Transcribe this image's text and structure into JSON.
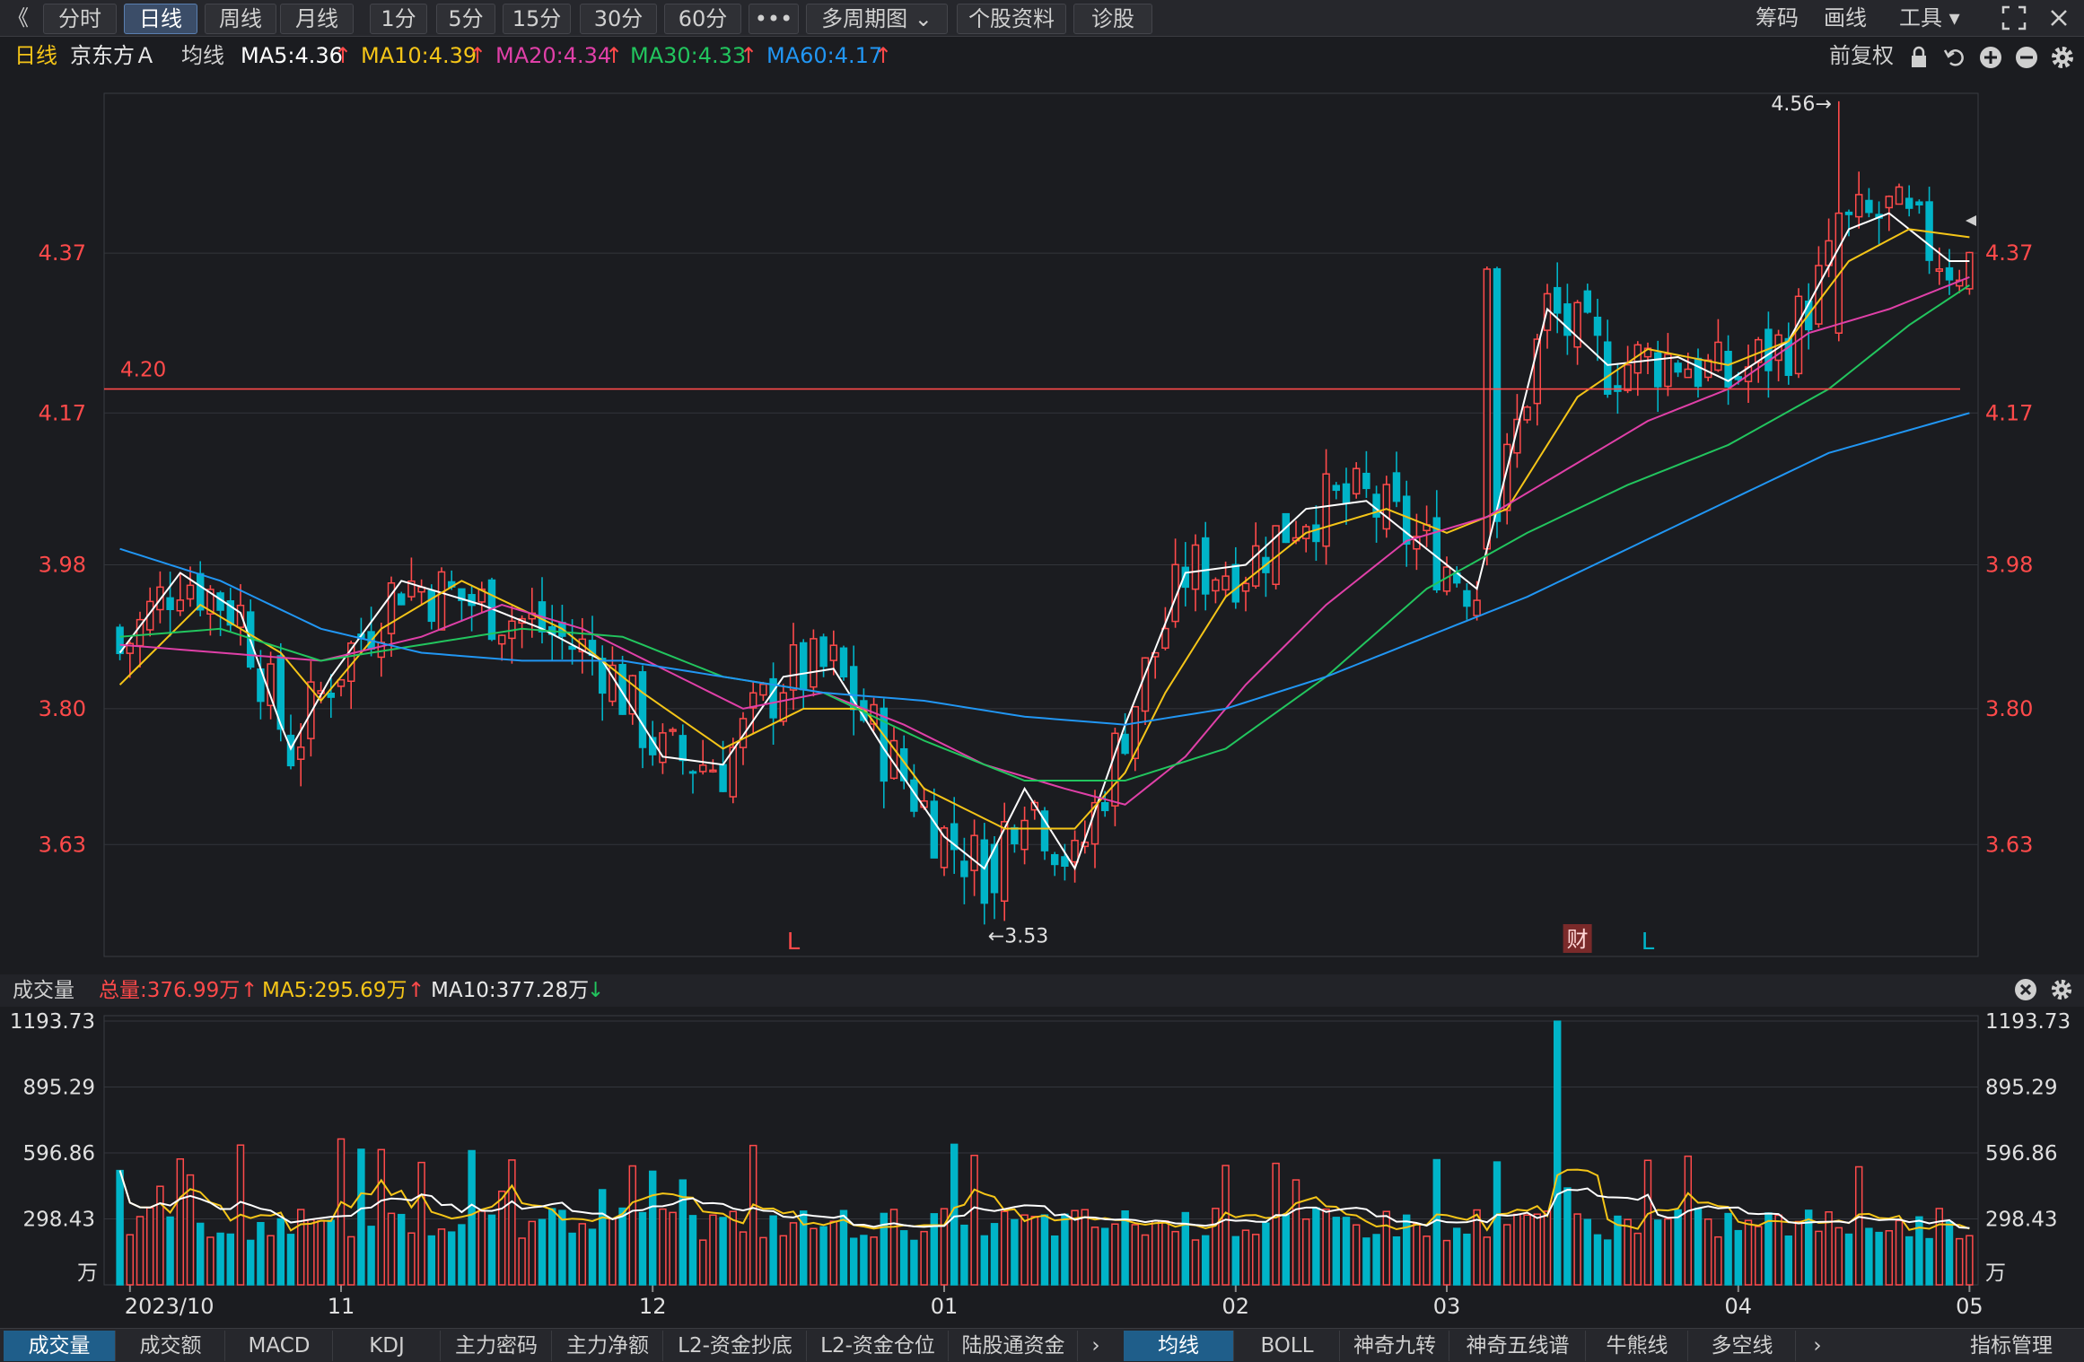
{
  "toolbar": {
    "collapse": "《",
    "tabs": [
      "分时",
      "日线",
      "周线",
      "月线",
      "1分",
      "5分",
      "15分",
      "30分",
      "60分",
      "•••",
      "多周期图 ⌄",
      "个股资料",
      "诊股"
    ],
    "active_tab": 1,
    "right_tools": [
      "筹码",
      "画线",
      "工具 ▾"
    ]
  },
  "info": {
    "period": "日线",
    "stock": "京东方Ａ",
    "avg_label": "均线",
    "ma5": "MA5:4.36",
    "ma10": "MA10:4.39",
    "ma20": "MA20:4.34",
    "ma30": "MA30:4.33",
    "ma60": "MA60:4.17",
    "adjust": "前复权",
    "up_arrow": "↑"
  },
  "volume_info": {
    "label": "成交量",
    "total": "总量:376.99万",
    "ma5": "MA5:295.69万",
    "ma10": "MA10:377.28万",
    "up": "↑",
    "down": "↓"
  },
  "bottom_tabs_left": [
    "成交量",
    "成交额",
    "MACD",
    "KDJ",
    "主力密码",
    "主力净额",
    "L2-资金抄底",
    "L2-资金仓位",
    "陆股通资金"
  ],
  "bottom_tabs_right": [
    "均线",
    "BOLL",
    "神奇九转",
    "神奇五线谱",
    "牛熊线",
    "多空线"
  ],
  "indicator_manage": "指标管理",
  "colors": {
    "up": "#ff4a4a",
    "down": "#00b4c8",
    "ma5": "#ffffff",
    "ma10": "#f5c518",
    "ma20": "#e040a8",
    "ma30": "#22c55e",
    "ma60": "#2196f3",
    "grid": "#33353b"
  },
  "chart_data": [
    {
      "type": "candlestick",
      "title": "京东方Ａ 日线",
      "y_ticks": [
        3.63,
        3.8,
        3.98,
        4.17,
        4.37
      ],
      "ylim": [
        3.49,
        4.57
      ],
      "x_ticks": [
        "2023/10",
        "11",
        "12",
        "01",
        "02",
        "03",
        "04",
        "05"
      ],
      "hline": {
        "value": 4.2,
        "label": "4.20"
      },
      "annotations": {
        "high": "4.56→",
        "low": "←3.53",
        "markers": [
          "L",
          "财",
          "L"
        ]
      },
      "ma_series": [
        {
          "name": "MA5",
          "anchors": [
            [
              0,
              3.87
            ],
            [
              6,
              3.97
            ],
            [
              12,
              3.92
            ],
            [
              16,
              3.78
            ],
            [
              17,
              3.75
            ],
            [
              21,
              3.84
            ],
            [
              28,
              3.96
            ],
            [
              36,
              3.93
            ],
            [
              42,
              3.9
            ],
            [
              48,
              3.86
            ],
            [
              54,
              3.74
            ],
            [
              60,
              3.73
            ],
            [
              66,
              3.84
            ],
            [
              71,
              3.85
            ],
            [
              76,
              3.75
            ],
            [
              82,
              3.64
            ],
            [
              86,
              3.6
            ],
            [
              90,
              3.7
            ],
            [
              95,
              3.6
            ],
            [
              100,
              3.78
            ],
            [
              106,
              3.97
            ],
            [
              112,
              3.98
            ],
            [
              118,
              4.05
            ],
            [
              124,
              4.06
            ],
            [
              130,
              4.0
            ],
            [
              135,
              3.95
            ],
            [
              138,
              4.1
            ],
            [
              142,
              4.3
            ],
            [
              148,
              4.23
            ],
            [
              155,
              4.24
            ],
            [
              160,
              4.21
            ],
            [
              166,
              4.26
            ],
            [
              172,
              4.4
            ],
            [
              176,
              4.42
            ],
            [
              182,
              4.36
            ],
            [
              184,
              4.36
            ]
          ]
        },
        {
          "name": "MA10",
          "anchors": [
            [
              0,
              3.83
            ],
            [
              8,
              3.93
            ],
            [
              16,
              3.87
            ],
            [
              20,
              3.81
            ],
            [
              26,
              3.9
            ],
            [
              34,
              3.96
            ],
            [
              44,
              3.9
            ],
            [
              52,
              3.82
            ],
            [
              60,
              3.75
            ],
            [
              68,
              3.8
            ],
            [
              74,
              3.8
            ],
            [
              80,
              3.7
            ],
            [
              88,
              3.65
            ],
            [
              95,
              3.65
            ],
            [
              100,
              3.72
            ],
            [
              104,
              3.82
            ],
            [
              110,
              3.94
            ],
            [
              118,
              4.02
            ],
            [
              126,
              4.05
            ],
            [
              132,
              4.02
            ],
            [
              138,
              4.05
            ],
            [
              145,
              4.19
            ],
            [
              152,
              4.25
            ],
            [
              160,
              4.23
            ],
            [
              166,
              4.26
            ],
            [
              172,
              4.36
            ],
            [
              178,
              4.4
            ],
            [
              184,
              4.39
            ]
          ]
        },
        {
          "name": "MA20",
          "anchors": [
            [
              0,
              3.88
            ],
            [
              10,
              3.87
            ],
            [
              20,
              3.86
            ],
            [
              30,
              3.89
            ],
            [
              38,
              3.93
            ],
            [
              46,
              3.9
            ],
            [
              54,
              3.85
            ],
            [
              62,
              3.8
            ],
            [
              70,
              3.82
            ],
            [
              78,
              3.78
            ],
            [
              86,
              3.73
            ],
            [
              94,
              3.7
            ],
            [
              100,
              3.68
            ],
            [
              106,
              3.74
            ],
            [
              112,
              3.83
            ],
            [
              120,
              3.93
            ],
            [
              128,
              4.01
            ],
            [
              136,
              4.04
            ],
            [
              144,
              4.1
            ],
            [
              152,
              4.16
            ],
            [
              160,
              4.2
            ],
            [
              168,
              4.27
            ],
            [
              176,
              4.3
            ],
            [
              184,
              4.34
            ]
          ]
        },
        {
          "name": "MA30",
          "anchors": [
            [
              0,
              3.89
            ],
            [
              10,
              3.9
            ],
            [
              20,
              3.86
            ],
            [
              30,
              3.88
            ],
            [
              40,
              3.9
            ],
            [
              50,
              3.89
            ],
            [
              60,
              3.84
            ],
            [
              70,
              3.82
            ],
            [
              80,
              3.76
            ],
            [
              90,
              3.71
            ],
            [
              100,
              3.71
            ],
            [
              110,
              3.75
            ],
            [
              120,
              3.84
            ],
            [
              130,
              3.95
            ],
            [
              140,
              4.02
            ],
            [
              150,
              4.08
            ],
            [
              160,
              4.13
            ],
            [
              170,
              4.2
            ],
            [
              178,
              4.28
            ],
            [
              184,
              4.33
            ]
          ]
        },
        {
          "name": "MA60",
          "anchors": [
            [
              0,
              4.0
            ],
            [
              10,
              3.96
            ],
            [
              20,
              3.9
            ],
            [
              30,
              3.87
            ],
            [
              40,
              3.86
            ],
            [
              50,
              3.86
            ],
            [
              60,
              3.84
            ],
            [
              70,
              3.82
            ],
            [
              80,
              3.81
            ],
            [
              90,
              3.79
            ],
            [
              100,
              3.78
            ],
            [
              110,
              3.8
            ],
            [
              120,
              3.84
            ],
            [
              130,
              3.89
            ],
            [
              140,
              3.94
            ],
            [
              150,
              4.0
            ],
            [
              160,
              4.06
            ],
            [
              170,
              4.12
            ],
            [
              184,
              4.17
            ]
          ]
        }
      ]
    },
    {
      "type": "bar",
      "title": "成交量",
      "unit": "万",
      "y_ticks": [
        298.43,
        596.86,
        895.29,
        1193.73
      ],
      "ylim": [
        0,
        1193.73
      ],
      "ma_lines": [
        {
          "name": "MA5",
          "color": "#f5c518"
        },
        {
          "name": "MA10",
          "color": "#ffffff"
        }
      ]
    }
  ]
}
